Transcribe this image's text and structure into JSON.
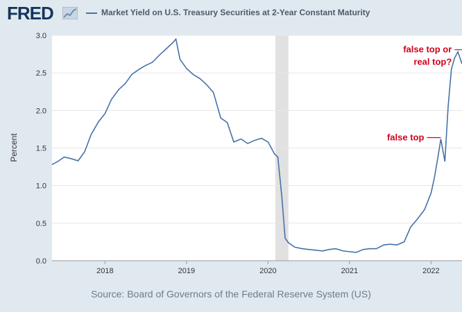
{
  "header": {
    "logo_text": "FRED",
    "legend_label": "Market Yield on U.S. Treasury Securities at 2-Year Constant Maturity",
    "legend_color": "#4572a7"
  },
  "footer": {
    "source": "Source: Board of Governors of the Federal Reserve System (US)"
  },
  "chart_data": {
    "type": "line",
    "title": "",
    "xlabel": "",
    "ylabel": "Percent",
    "xlim": [
      2017.35,
      2022.38
    ],
    "ylim": [
      0,
      3.0
    ],
    "x_ticks": [
      "2018",
      "2019",
      "2020",
      "2021",
      "2022"
    ],
    "y_ticks": [
      "0.0",
      "0.5",
      "1.0",
      "1.5",
      "2.0",
      "2.5",
      "3.0"
    ],
    "grid": "horizontal",
    "recession_band": [
      2020.09,
      2020.25
    ],
    "series": [
      {
        "name": "Market Yield on U.S. Treasury Securities at 2-Year Constant Maturity",
        "color": "#4572a7",
        "x": [
          2017.35,
          2017.42,
          2017.5,
          2017.58,
          2017.67,
          2017.75,
          2017.83,
          2017.92,
          2018.0,
          2018.08,
          2018.17,
          2018.25,
          2018.33,
          2018.42,
          2018.5,
          2018.58,
          2018.67,
          2018.75,
          2018.83,
          2018.87,
          2018.92,
          2019.0,
          2019.08,
          2019.17,
          2019.25,
          2019.33,
          2019.42,
          2019.5,
          2019.58,
          2019.67,
          2019.75,
          2019.83,
          2019.92,
          2020.0,
          2020.08,
          2020.12,
          2020.17,
          2020.21,
          2020.25,
          2020.33,
          2020.42,
          2020.5,
          2020.58,
          2020.67,
          2020.75,
          2020.83,
          2020.92,
          2021.0,
          2021.08,
          2021.17,
          2021.25,
          2021.33,
          2021.42,
          2021.5,
          2021.58,
          2021.67,
          2021.75,
          2021.83,
          2021.92,
          2022.0,
          2022.04,
          2022.08,
          2022.12,
          2022.17,
          2022.21,
          2022.25,
          2022.29,
          2022.33,
          2022.38
        ],
        "values": [
          1.28,
          1.32,
          1.38,
          1.36,
          1.33,
          1.45,
          1.68,
          1.85,
          1.96,
          2.15,
          2.28,
          2.36,
          2.48,
          2.55,
          2.6,
          2.64,
          2.74,
          2.82,
          2.9,
          2.95,
          2.68,
          2.56,
          2.48,
          2.42,
          2.34,
          2.24,
          1.9,
          1.84,
          1.58,
          1.62,
          1.56,
          1.6,
          1.63,
          1.58,
          1.42,
          1.38,
          0.85,
          0.3,
          0.24,
          0.18,
          0.16,
          0.15,
          0.14,
          0.13,
          0.15,
          0.16,
          0.13,
          0.12,
          0.11,
          0.15,
          0.16,
          0.16,
          0.21,
          0.22,
          0.21,
          0.25,
          0.45,
          0.55,
          0.68,
          0.9,
          1.1,
          1.35,
          1.62,
          1.32,
          2.05,
          2.55,
          2.7,
          2.78,
          2.62
        ]
      }
    ],
    "annotations": [
      {
        "text": "false top",
        "x": 2022.12,
        "y": 1.62
      },
      {
        "lines": [
          "false top or",
          "real top?"
        ],
        "x": 2022.34,
        "y": 2.8
      }
    ]
  }
}
